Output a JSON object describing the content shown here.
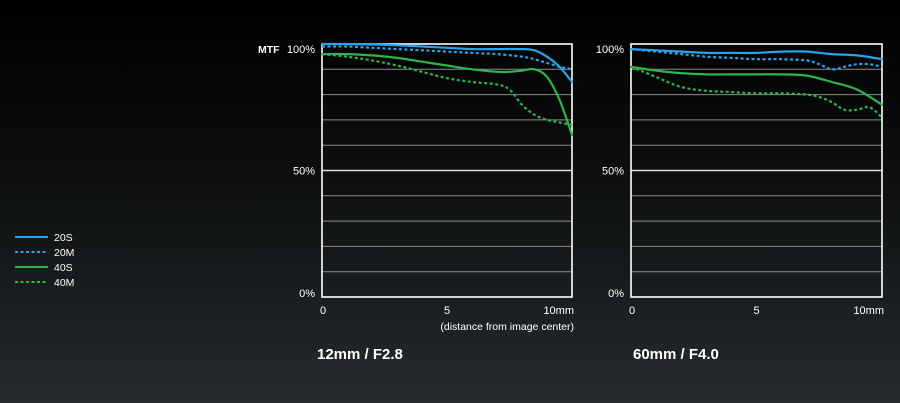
{
  "chart_data": [
    {
      "type": "line",
      "mtf_label": "MTF",
      "caption": "12mm / F2.8",
      "xlabel": "(distance from image center)",
      "xlim": [
        0,
        10
      ],
      "ylim": [
        0,
        100
      ],
      "x_ticks": [
        "0",
        "5",
        "10mm"
      ],
      "y_ticks": [
        "0%",
        "50%",
        "100%"
      ],
      "series": [
        {
          "name": "20S",
          "color": "#29a3e8",
          "dashed": false,
          "x": [
            0,
            1,
            2,
            3,
            4,
            5,
            6,
            7,
            8,
            8.5,
            9,
            9.5,
            10
          ],
          "y": [
            100,
            100,
            99.8,
            99.5,
            99,
            98.5,
            98,
            98,
            98,
            97.5,
            95,
            91,
            85
          ]
        },
        {
          "name": "20M",
          "color": "#29a3e8",
          "dashed": true,
          "x": [
            0,
            1,
            2,
            3,
            4,
            5,
            6,
            7,
            8,
            8.5,
            9,
            9.5,
            10
          ],
          "y": [
            99,
            99,
            98.5,
            98,
            97.5,
            97,
            96.5,
            96,
            95,
            94,
            92.5,
            91,
            90
          ]
        },
        {
          "name": "40S",
          "color": "#2fb34a",
          "dashed": false,
          "x": [
            0,
            1,
            2,
            3,
            4,
            5,
            6,
            7,
            7.5,
            8,
            8.5,
            9,
            9.5,
            10
          ],
          "y": [
            96,
            96,
            95.5,
            94.5,
            93,
            91.5,
            90,
            89,
            89,
            89.5,
            90,
            87,
            78,
            64
          ]
        },
        {
          "name": "40M",
          "color": "#2fb34a",
          "dashed": true,
          "x": [
            0,
            1,
            2,
            3,
            4,
            5,
            6,
            7,
            7.5,
            8,
            8.5,
            9,
            9.5,
            10
          ],
          "y": [
            96,
            95,
            93.5,
            91.5,
            89,
            86.5,
            85,
            84,
            82,
            76,
            72,
            70,
            69,
            68
          ]
        }
      ]
    },
    {
      "type": "line",
      "mtf_label": "",
      "caption": "60mm / F4.0",
      "xlabel": "",
      "xlim": [
        0,
        10
      ],
      "ylim": [
        0,
        100
      ],
      "x_ticks": [
        "0",
        "5",
        "10mm"
      ],
      "y_ticks": [
        "0%",
        "50%",
        "100%"
      ],
      "series": [
        {
          "name": "20S",
          "color": "#29a3e8",
          "dashed": false,
          "x": [
            0,
            1,
            2,
            3,
            4,
            5,
            6,
            7,
            8,
            9,
            10
          ],
          "y": [
            98,
            97.5,
            97,
            96.5,
            96.5,
            96.5,
            97,
            97,
            96,
            95.5,
            94
          ]
        },
        {
          "name": "20M",
          "color": "#29a3e8",
          "dashed": true,
          "x": [
            0,
            1,
            2,
            3,
            4,
            5,
            6,
            7,
            7.5,
            8,
            8.5,
            9,
            9.5,
            10
          ],
          "y": [
            98,
            97,
            96,
            95,
            94.5,
            94,
            94,
            93.5,
            92,
            90,
            91,
            92,
            92,
            91
          ]
        },
        {
          "name": "40S",
          "color": "#2fb34a",
          "dashed": false,
          "x": [
            0,
            1,
            2,
            3,
            4,
            5,
            6,
            7,
            8,
            9,
            10
          ],
          "y": [
            91,
            89.5,
            88.5,
            88,
            88,
            88,
            88,
            87.5,
            85,
            82,
            76
          ]
        },
        {
          "name": "40M",
          "color": "#2fb34a",
          "dashed": true,
          "x": [
            0,
            1,
            2,
            3,
            4,
            5,
            6,
            7,
            7.5,
            8,
            8.5,
            9,
            9.5,
            10
          ],
          "y": [
            91,
            87,
            83,
            81.5,
            81,
            80.5,
            80.5,
            80,
            79,
            77,
            74,
            74,
            75,
            71
          ]
        }
      ]
    }
  ]
}
